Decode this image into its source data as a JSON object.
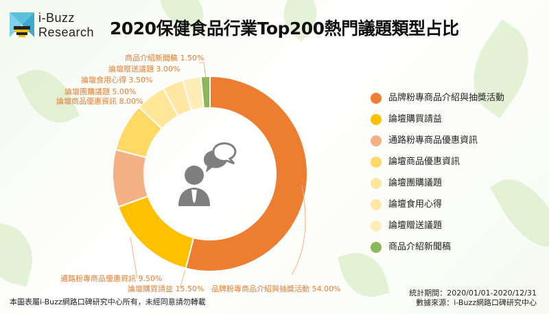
{
  "brand": {
    "line1": "i-Buzz",
    "line2": "Research"
  },
  "title": "2020保健食品行業Top200熱門議題類型占比",
  "footer": {
    "copyright": "本圖表屬i-Buzz網路口碑研究中心所有，未經同意請勿轉載",
    "period": "統計期間：2020/01/01-2020/12/31",
    "source": "數據來源：i-Buzz網路口碑研究中心"
  },
  "colors": {
    "accent": "#ED7D31",
    "leader_line": "#F4B183"
  },
  "chart_data": {
    "type": "pie",
    "donut": true,
    "title": "2020保健食品行業Top200熱門議題類型占比",
    "center_icon": "person-chat-icon",
    "legend_position": "right",
    "slices": [
      {
        "label": "品牌粉專商品介紹與抽獎活動",
        "value": 54.0,
        "display": "品牌粉專商品介紹與抽獎活動 54.00%",
        "color": "#ED7D31"
      },
      {
        "label": "論壇購買請益",
        "value": 15.5,
        "display": "論壇購買請益 15.50%",
        "color": "#FFC000"
      },
      {
        "label": "通路粉專商品優惠資訊",
        "value": 9.5,
        "display": "通路粉專商品優惠資訊 9.50%",
        "color": "#F4B183"
      },
      {
        "label": "論壇商品優惠資訊",
        "value": 8.0,
        "display": "論壇商品優惠資訊 8.00%",
        "color": "#FFD966"
      },
      {
        "label": "論壇團購議題",
        "value": 5.0,
        "display": "論壇團購議題 5.00%",
        "color": "#FFE699"
      },
      {
        "label": "論壇食用心得",
        "value": 3.5,
        "display": "論壇食用心得 3.50%",
        "color": "#FFE8A3"
      },
      {
        "label": "論壇贈送議題",
        "value": 3.0,
        "display": "論壇贈送議題 3.00%",
        "color": "#FFEDB8"
      },
      {
        "label": "商品介紹新聞稿",
        "value": 1.5,
        "display": "商品介紹新聞稿 1.50%",
        "color": "#8DB65A"
      }
    ]
  }
}
